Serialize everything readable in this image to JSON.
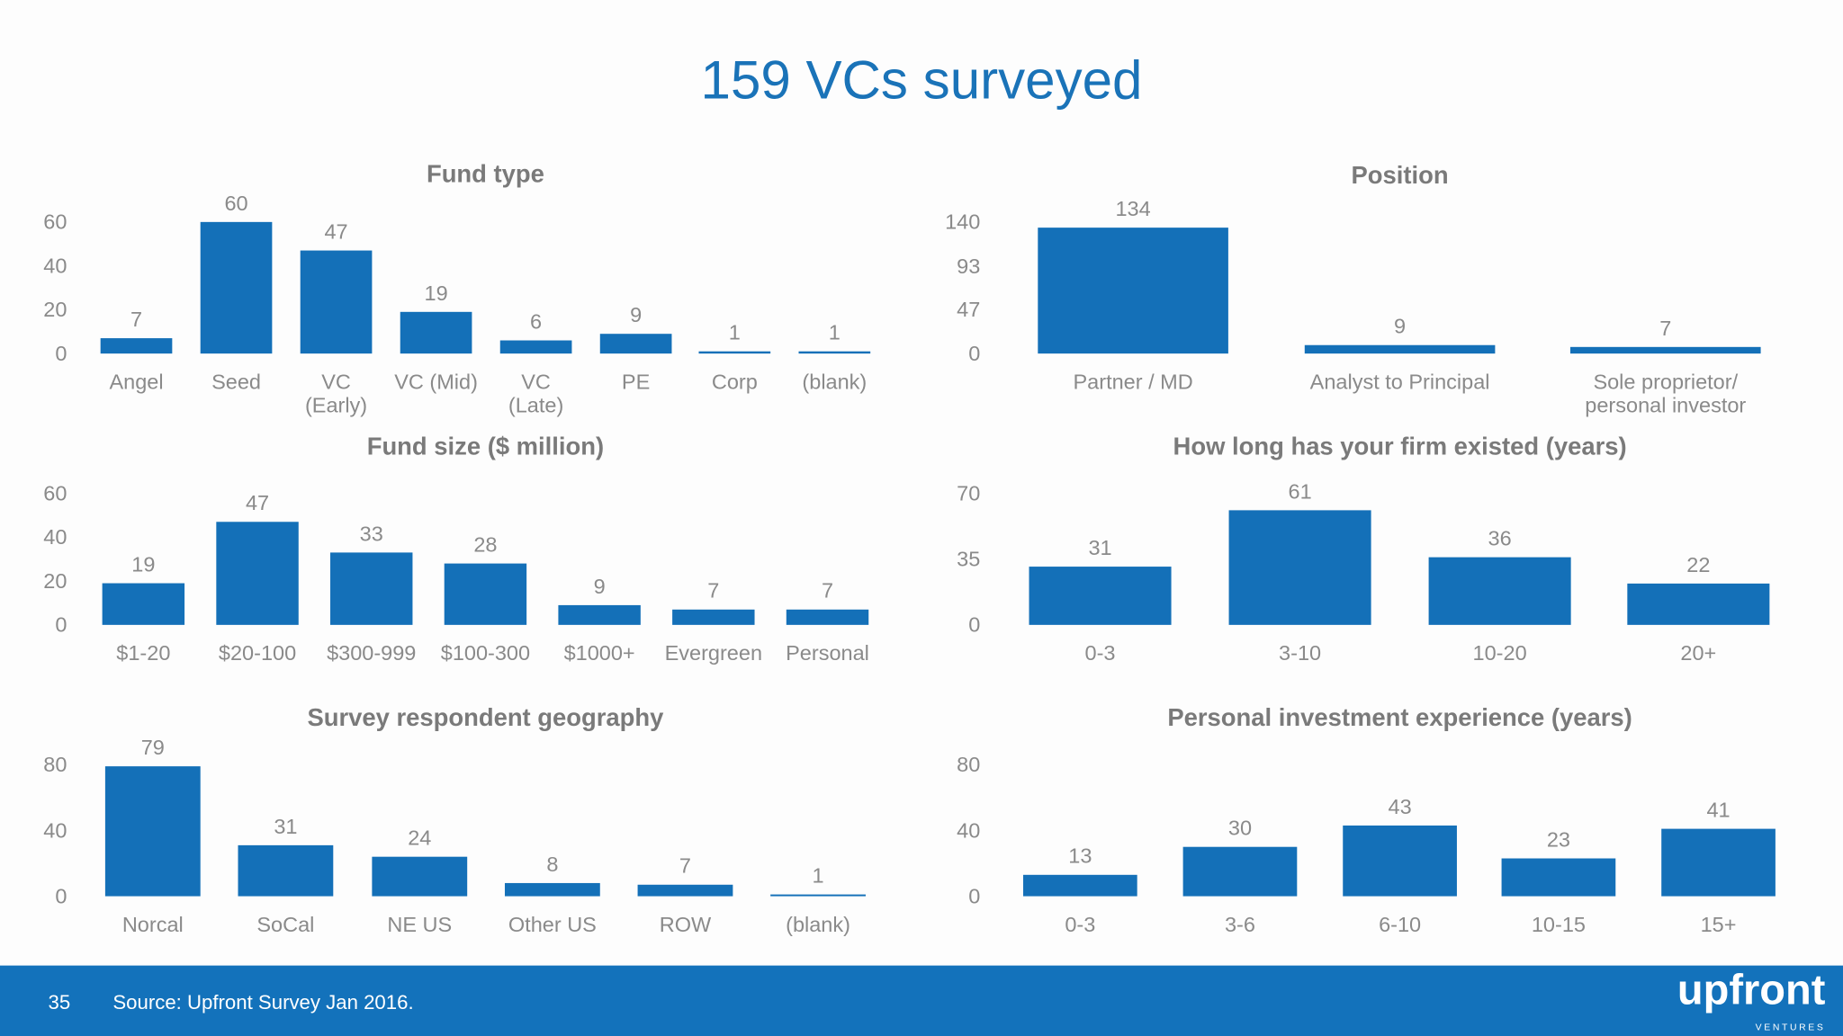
{
  "title": "159 VCs surveyed",
  "footer": {
    "page_number": "35",
    "source": "Source: Upfront Survey Jan 2016.",
    "logo": "upfront",
    "logo_sub": "VENTURES"
  },
  "colors": {
    "bar": "#1470b8",
    "footer": "#1372bb",
    "title": "#1a73b8"
  },
  "chart_data": [
    {
      "type": "bar",
      "title": "Fund type",
      "categories": [
        "Angel",
        "Seed",
        "VC (Early)",
        "VC (Mid)",
        "VC (Late)",
        "PE",
        "Corp",
        "(blank)"
      ],
      "values": [
        7,
        60,
        47,
        19,
        6,
        9,
        1,
        1
      ],
      "yticks": [
        0,
        20,
        40,
        60
      ],
      "ylim": [
        0,
        60
      ]
    },
    {
      "type": "bar",
      "title": "Position",
      "categories": [
        "Partner / MD",
        "Analyst to Principal",
        "Sole proprietor/personal investor"
      ],
      "values": [
        134,
        9,
        7
      ],
      "yticks": [
        0,
        47,
        93,
        140
      ],
      "ylim": [
        0,
        140
      ]
    },
    {
      "type": "bar",
      "title": "Fund size ($ million)",
      "categories": [
        "$1-20",
        "$20-100",
        "$300-999",
        "$100-300",
        "$1000+",
        "Evergreen",
        "Personal"
      ],
      "values": [
        19,
        47,
        33,
        28,
        9,
        7,
        7
      ],
      "yticks": [
        0,
        20,
        40,
        60
      ],
      "ylim": [
        0,
        60
      ]
    },
    {
      "type": "bar",
      "title": "How long has your firm existed (years)",
      "categories": [
        "0-3",
        "3-10",
        "10-20",
        "20+"
      ],
      "values": [
        31,
        61,
        36,
        22
      ],
      "yticks": [
        0,
        35,
        70
      ],
      "ylim": [
        0,
        70
      ]
    },
    {
      "type": "bar",
      "title": "Survey respondent geography",
      "categories": [
        "Norcal",
        "SoCal",
        "NE US",
        "Other US",
        "ROW",
        "(blank)"
      ],
      "values": [
        79,
        31,
        24,
        8,
        7,
        1
      ],
      "yticks": [
        0,
        40,
        80
      ],
      "ylim": [
        0,
        80
      ]
    },
    {
      "type": "bar",
      "title": "Personal investment experience (years)",
      "categories": [
        "0-3",
        "3-6",
        "6-10",
        "10-15",
        "15+"
      ],
      "values": [
        13,
        30,
        43,
        23,
        41
      ],
      "yticks": [
        0,
        40,
        80
      ],
      "ylim": [
        0,
        80
      ]
    }
  ]
}
